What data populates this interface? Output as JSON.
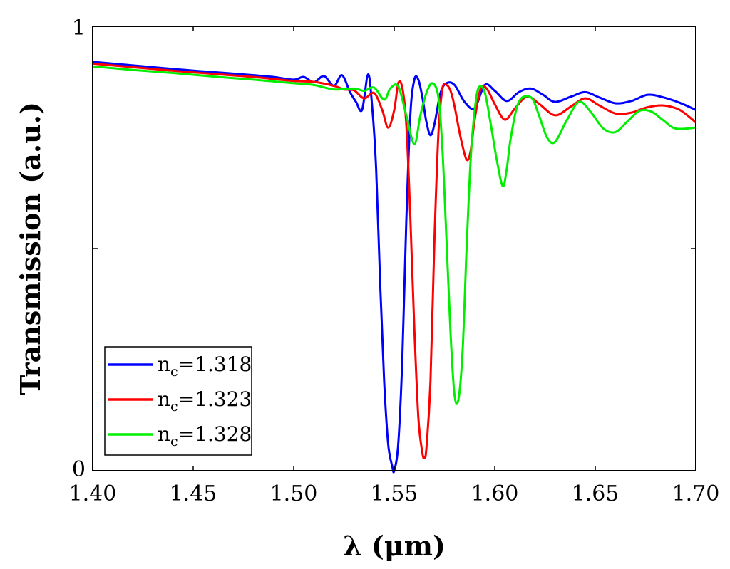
{
  "chart_data": {
    "type": "line",
    "title": "",
    "xlabel": "λ (μm)",
    "ylabel": "Transmission (a.u.)",
    "xlim": [
      1.4,
      1.7
    ],
    "ylim": [
      0,
      1
    ],
    "xticks": [
      "1.40",
      "1.45",
      "1.50",
      "1.55",
      "1.60",
      "1.65",
      "1.70"
    ],
    "yticks": [
      "0",
      "1"
    ],
    "grid": false,
    "legend_position": "bottom-left",
    "series": [
      {
        "name": "nc=1.318",
        "legend_main": "n",
        "legend_sub": "c",
        "legend_value": "=1.318",
        "color": "#0000ff",
        "x": [
          1.4,
          1.42,
          1.44,
          1.46,
          1.48,
          1.49,
          1.5,
          1.505,
          1.51,
          1.515,
          1.52,
          1.524,
          1.528,
          1.531,
          1.534,
          1.537,
          1.539,
          1.541,
          1.543,
          1.545,
          1.547,
          1.549,
          1.55,
          1.552,
          1.554,
          1.556,
          1.558,
          1.56,
          1.562,
          1.564,
          1.566,
          1.568,
          1.57,
          1.573,
          1.576,
          1.58,
          1.585,
          1.59,
          1.595,
          1.6,
          1.606,
          1.612,
          1.618,
          1.624,
          1.63,
          1.638,
          1.645,
          1.652,
          1.66,
          1.668,
          1.676,
          1.684,
          1.692,
          1.7
        ],
        "y": [
          0.92,
          0.912,
          0.904,
          0.897,
          0.89,
          0.886,
          0.88,
          0.886,
          0.874,
          0.888,
          0.866,
          0.89,
          0.852,
          0.83,
          0.812,
          0.892,
          0.82,
          0.68,
          0.42,
          0.2,
          0.06,
          0.01,
          0.0,
          0.06,
          0.25,
          0.56,
          0.8,
          0.88,
          0.88,
          0.84,
          0.785,
          0.755,
          0.78,
          0.85,
          0.872,
          0.868,
          0.83,
          0.816,
          0.868,
          0.855,
          0.832,
          0.852,
          0.86,
          0.846,
          0.83,
          0.842,
          0.852,
          0.84,
          0.827,
          0.832,
          0.846,
          0.84,
          0.828,
          0.812
        ]
      },
      {
        "name": "nc=1.323",
        "legend_main": "n",
        "legend_sub": "c",
        "legend_value": "=1.323",
        "color": "#ff0000",
        "x": [
          1.4,
          1.42,
          1.44,
          1.46,
          1.48,
          1.5,
          1.51,
          1.52,
          1.525,
          1.53,
          1.535,
          1.54,
          1.544,
          1.547,
          1.55,
          1.552,
          1.554,
          1.556,
          1.558,
          1.56,
          1.562,
          1.564,
          1.565,
          1.566,
          1.568,
          1.57,
          1.572,
          1.574,
          1.576,
          1.578,
          1.58,
          1.583,
          1.586,
          1.588,
          1.59,
          1.593,
          1.596,
          1.6,
          1.605,
          1.61,
          1.616,
          1.622,
          1.63,
          1.638,
          1.645,
          1.652,
          1.66,
          1.668,
          1.676,
          1.684,
          1.692,
          1.7
        ],
        "y": [
          0.916,
          0.908,
          0.9,
          0.893,
          0.886,
          0.877,
          0.875,
          0.866,
          0.858,
          0.856,
          0.838,
          0.85,
          0.812,
          0.772,
          0.812,
          0.872,
          0.862,
          0.78,
          0.57,
          0.32,
          0.12,
          0.04,
          0.03,
          0.05,
          0.2,
          0.52,
          0.76,
          0.86,
          0.868,
          0.855,
          0.82,
          0.75,
          0.7,
          0.72,
          0.79,
          0.86,
          0.86,
          0.825,
          0.79,
          0.815,
          0.842,
          0.826,
          0.8,
          0.82,
          0.838,
          0.822,
          0.804,
          0.806,
          0.818,
          0.822,
          0.812,
          0.784
        ]
      },
      {
        "name": "nc=1.328",
        "legend_main": "n",
        "legend_sub": "c",
        "legend_value": "=1.328",
        "color": "#00ee00",
        "x": [
          1.4,
          1.42,
          1.44,
          1.46,
          1.48,
          1.5,
          1.51,
          1.52,
          1.53,
          1.535,
          1.54,
          1.545,
          1.548,
          1.552,
          1.556,
          1.56,
          1.563,
          1.566,
          1.569,
          1.572,
          1.574,
          1.576,
          1.578,
          1.58,
          1.582,
          1.584,
          1.586,
          1.588,
          1.59,
          1.592,
          1.595,
          1.598,
          1.601,
          1.604,
          1.606,
          1.608,
          1.612,
          1.618,
          1.622,
          1.626,
          1.63,
          1.636,
          1.642,
          1.648,
          1.654,
          1.66,
          1.666,
          1.672,
          1.678,
          1.684,
          1.69,
          1.7
        ],
        "y": [
          0.91,
          0.902,
          0.895,
          0.887,
          0.88,
          0.872,
          0.868,
          0.858,
          0.86,
          0.855,
          0.862,
          0.835,
          0.86,
          0.865,
          0.8,
          0.735,
          0.8,
          0.85,
          0.872,
          0.84,
          0.72,
          0.52,
          0.31,
          0.17,
          0.162,
          0.27,
          0.5,
          0.7,
          0.81,
          0.862,
          0.852,
          0.78,
          0.7,
          0.64,
          0.68,
          0.75,
          0.83,
          0.84,
          0.8,
          0.75,
          0.74,
          0.79,
          0.83,
          0.806,
          0.77,
          0.762,
          0.786,
          0.81,
          0.808,
          0.788,
          0.77,
          0.772
        ]
      }
    ]
  }
}
